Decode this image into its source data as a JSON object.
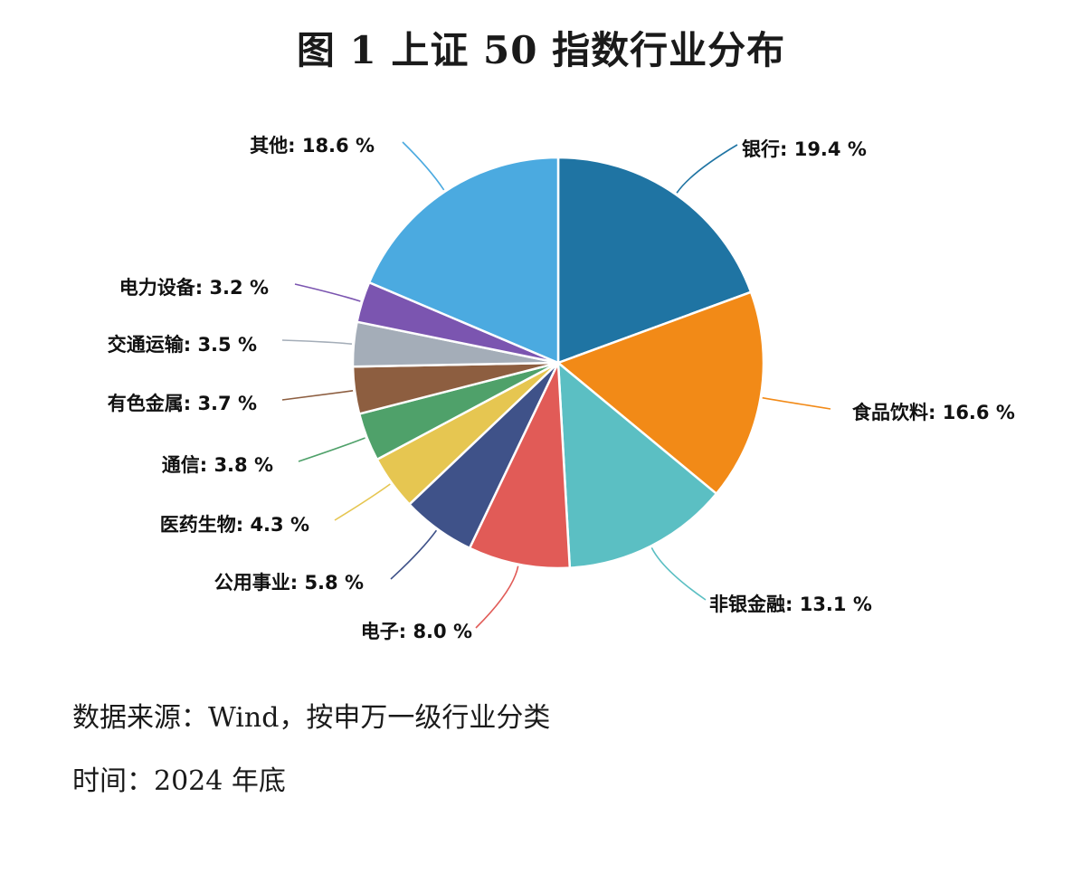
{
  "header": {
    "title": "图 1 上证 50 指数行业分布"
  },
  "chart_data": {
    "type": "pie",
    "title": "图 1 上证 50 指数行业分布",
    "unit": "%",
    "slices": [
      {
        "label": "银行",
        "value": 19.4,
        "display": "19.4 %",
        "color": "#1f74a3"
      },
      {
        "label": "食品饮料",
        "value": 16.6,
        "display": "16.6 %",
        "color": "#f28a17"
      },
      {
        "label": "非银金融",
        "value": 13.1,
        "display": "13.1 %",
        "color": "#5bbfc3"
      },
      {
        "label": "电子",
        "value": 8.0,
        "display": "8.0 %",
        "color": "#e15b57"
      },
      {
        "label": "公用事业",
        "value": 5.8,
        "display": "5.8 %",
        "color": "#3f5289"
      },
      {
        "label": "医药生物",
        "value": 4.3,
        "display": "4.3 %",
        "color": "#e6c651"
      },
      {
        "label": "通信",
        "value": 3.8,
        "display": "3.8 %",
        "color": "#4fa16a"
      },
      {
        "label": "有色金属",
        "value": 3.7,
        "display": "3.7 %",
        "color": "#8d5e40"
      },
      {
        "label": "交通运输",
        "value": 3.5,
        "display": "3.5 %",
        "color": "#a4adb8"
      },
      {
        "label": "电力设备",
        "value": 3.2,
        "display": "3.2 %",
        "color": "#7b55b0"
      },
      {
        "label": "其他",
        "value": 18.6,
        "display": "18.6 %",
        "color": "#4baae0"
      }
    ]
  },
  "notes": {
    "source": "数据来源：Wind，按申万一级行业分类",
    "time": "时间：2024 年底"
  }
}
